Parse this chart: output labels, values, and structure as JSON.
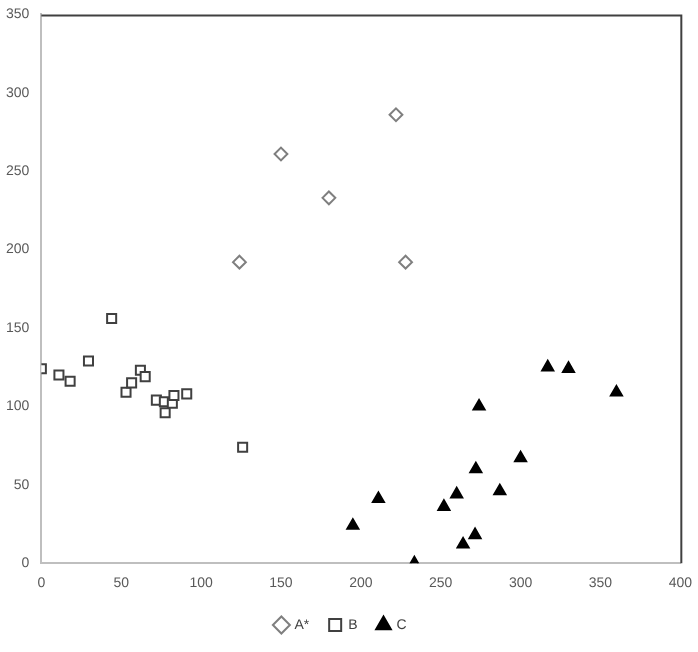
{
  "chart_data": {
    "type": "scatter",
    "xlim": [
      0,
      400
    ],
    "xticks": [
      0,
      50,
      100,
      150,
      200,
      250,
      300,
      350,
      400
    ],
    "ylim": [
      0,
      350
    ],
    "yticks": [
      0,
      50,
      100,
      150,
      200,
      250,
      300,
      350
    ],
    "grid": false,
    "legend": "bottom",
    "series": [
      {
        "name": "A*",
        "color": "#7f7f7f",
        "marker": "diamond",
        "x": [
          124,
          150,
          180,
          222,
          228
        ],
        "values": [
          192,
          261,
          233,
          286,
          192
        ]
      },
      {
        "name": "B",
        "color": "#404040",
        "marker": "square",
        "x": [
          0,
          11,
          18,
          29.5,
          44,
          53,
          56.5,
          62,
          65,
          72,
          77,
          77.5,
          82,
          83,
          91,
          126
        ],
        "values": [
          124,
          120,
          116,
          129,
          156,
          109,
          115,
          123,
          119,
          104,
          103,
          96,
          102,
          107,
          108,
          74
        ]
      },
      {
        "name": "C",
        "color": "#000000",
        "marker": "triangle",
        "x": [
          195,
          211,
          233.5,
          252,
          260,
          264,
          271.5,
          272,
          274,
          287,
          300,
          317,
          330,
          360
        ],
        "values": [
          24,
          41,
          0,
          36,
          44,
          12,
          18,
          60,
          100,
          46,
          67,
          125,
          124,
          109
        ]
      }
    ]
  }
}
